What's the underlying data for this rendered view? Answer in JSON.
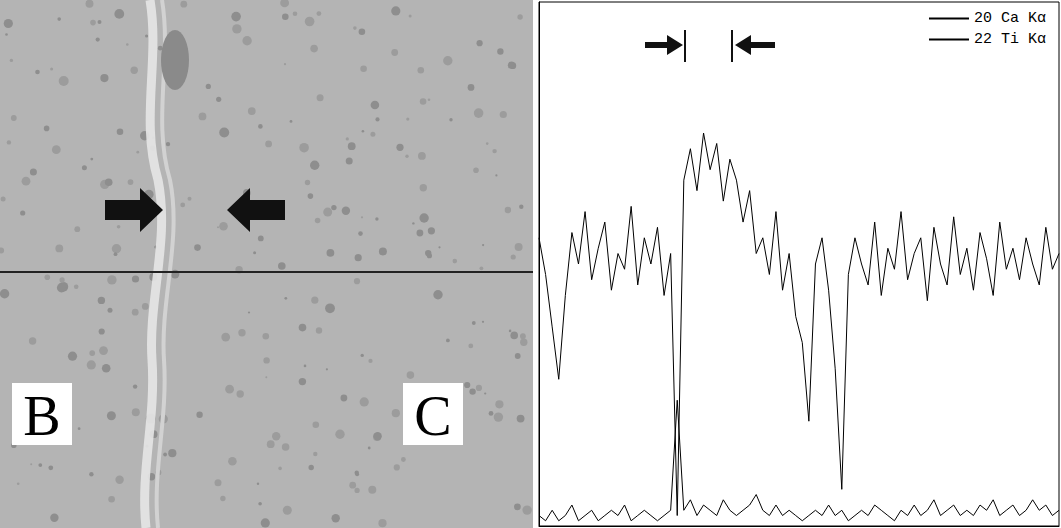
{
  "micrograph": {
    "labels": [
      "B",
      "C"
    ]
  },
  "chart_data": {
    "type": "line",
    "x": [
      0,
      1,
      2,
      3,
      4,
      5,
      6,
      7,
      8,
      9,
      10,
      11,
      12,
      13,
      14,
      15,
      16,
      17,
      18,
      19,
      20,
      21,
      22,
      23,
      24,
      25,
      26,
      27,
      28,
      29,
      30,
      31,
      32,
      33,
      34,
      35,
      36,
      37,
      38,
      39,
      40,
      41,
      42,
      43,
      44,
      45,
      46,
      47,
      48,
      49,
      50,
      51,
      52,
      53,
      54,
      55,
      56,
      57,
      58,
      59,
      60,
      61,
      62,
      63,
      64,
      65,
      66,
      67,
      68,
      69,
      70,
      71,
      72,
      73,
      74,
      75,
      76,
      77,
      78,
      79
    ],
    "xlim": [
      0,
      79
    ],
    "ylim": [
      0,
      100
    ],
    "tick_labels": false,
    "legend": "top-right",
    "series": [
      {
        "name": "20 Ca Kα",
        "color": "#000000",
        "values": [
          55,
          48,
          38,
          28,
          44,
          56,
          50,
          60,
          47,
          53,
          58,
          45,
          52,
          49,
          61,
          46,
          55,
          50,
          57,
          44,
          52,
          2,
          66,
          72,
          64,
          75,
          68,
          73,
          62,
          70,
          66,
          58,
          64,
          52,
          55,
          48,
          60,
          45,
          52,
          40,
          35,
          20,
          50,
          55,
          45,
          30,
          7,
          48,
          55,
          50,
          46,
          58,
          44,
          53,
          49,
          60,
          47,
          52,
          55,
          43,
          57,
          50,
          46,
          59,
          48,
          53,
          45,
          56,
          51,
          44,
          58,
          49,
          53,
          47,
          55,
          50,
          46,
          57,
          49,
          52
        ]
      },
      {
        "name": "22 Ti Kα",
        "color": "#000000",
        "values": [
          2,
          1,
          3,
          1,
          2,
          4,
          1,
          2,
          3,
          1,
          2,
          3,
          2,
          4,
          1,
          2,
          3,
          2,
          1,
          2,
          3,
          24,
          3,
          5,
          2,
          4,
          3,
          2,
          5,
          3,
          2,
          3,
          4,
          6,
          3,
          2,
          4,
          2,
          3,
          2,
          1,
          2,
          3,
          2,
          4,
          2,
          3,
          1,
          2,
          3,
          2,
          4,
          3,
          2,
          1,
          3,
          2,
          4,
          2,
          3,
          5,
          2,
          3,
          4,
          2,
          3,
          2,
          4,
          3,
          5,
          2,
          3,
          4,
          2,
          3,
          5,
          3,
          4,
          2,
          3
        ]
      }
    ]
  }
}
